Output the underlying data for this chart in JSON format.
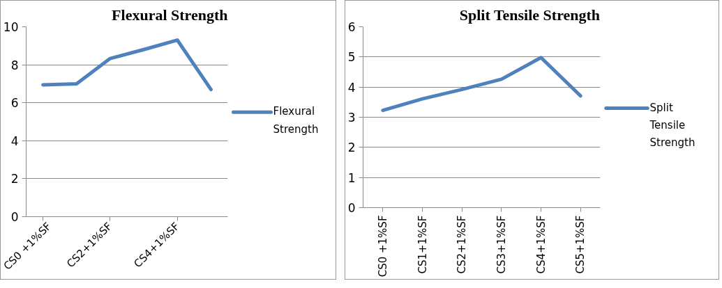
{
  "chart_data": [
    {
      "type": "line",
      "title": "Flexural Strength",
      "categories": [
        "CS0 +1%SF",
        null,
        "CS2+1%SF",
        null,
        "CS4+1%SF",
        null
      ],
      "series": [
        {
          "name": "Flexural Strength",
          "color": "#4f81bd",
          "values": [
            6.94,
            7.0,
            8.33,
            8.8,
            9.3,
            6.7
          ]
        }
      ],
      "ylim": [
        0,
        10
      ],
      "yticks": [
        0,
        2,
        4,
        6,
        8,
        10
      ],
      "grid": "y",
      "legend": "right"
    },
    {
      "type": "line",
      "title": "Split Tensile Strength",
      "categories": [
        "CS0 +1%SF",
        "CS1+1%SF",
        "CS2+1%SF",
        "CS3+1%SF",
        "CS4+1%SF",
        "CS5+1%SF"
      ],
      "series": [
        {
          "name": "Split Tensile Strength",
          "color": "#4f81bd",
          "values": [
            3.23,
            3.61,
            3.92,
            4.26,
            4.98,
            3.71
          ]
        }
      ],
      "ylim": [
        0,
        6
      ],
      "yticks": [
        0,
        1,
        2,
        3,
        4,
        5,
        6
      ],
      "grid": "y",
      "legend": "right"
    }
  ]
}
